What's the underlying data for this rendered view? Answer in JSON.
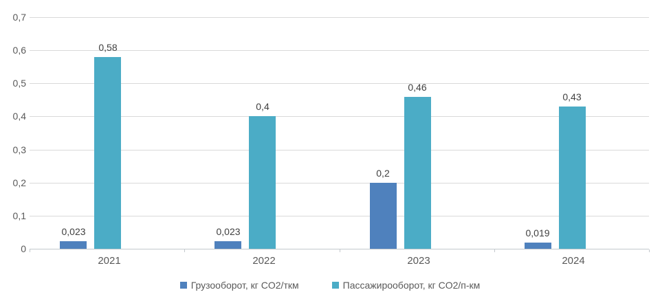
{
  "chart_data": {
    "type": "bar",
    "categories": [
      "2021",
      "2022",
      "2023",
      "2024"
    ],
    "series": [
      {
        "name": "Грузооборот, кг CO2/ткм",
        "color": "#4F81BD",
        "values": [
          0.023,
          0.023,
          0.2,
          0.019
        ],
        "labels": [
          "0,023",
          "0,023",
          "0,2",
          "0,019"
        ]
      },
      {
        "name": "Пассажирооборот, кг CO2/п-км",
        "color": "#4BACC6",
        "values": [
          0.58,
          0.4,
          0.46,
          0.43
        ],
        "labels": [
          "0,58",
          "0,4",
          "0,46",
          "0,43"
        ]
      }
    ],
    "y_axis": {
      "min": 0,
      "max": 0.7,
      "step": 0.1,
      "tick_labels": [
        "0",
        "0,1",
        "0,2",
        "0,3",
        "0,4",
        "0,5",
        "0,6",
        "0,7"
      ]
    },
    "grid": true,
    "legend_position": "bottom",
    "colors": {
      "series1": "#4F81BD",
      "series2": "#4BACC6",
      "gridline": "#d9d9d9",
      "axis": "#c3c8cc",
      "axis_text": "#595959",
      "data_label_text": "#3f3f3f",
      "background": "#ffffff"
    }
  }
}
